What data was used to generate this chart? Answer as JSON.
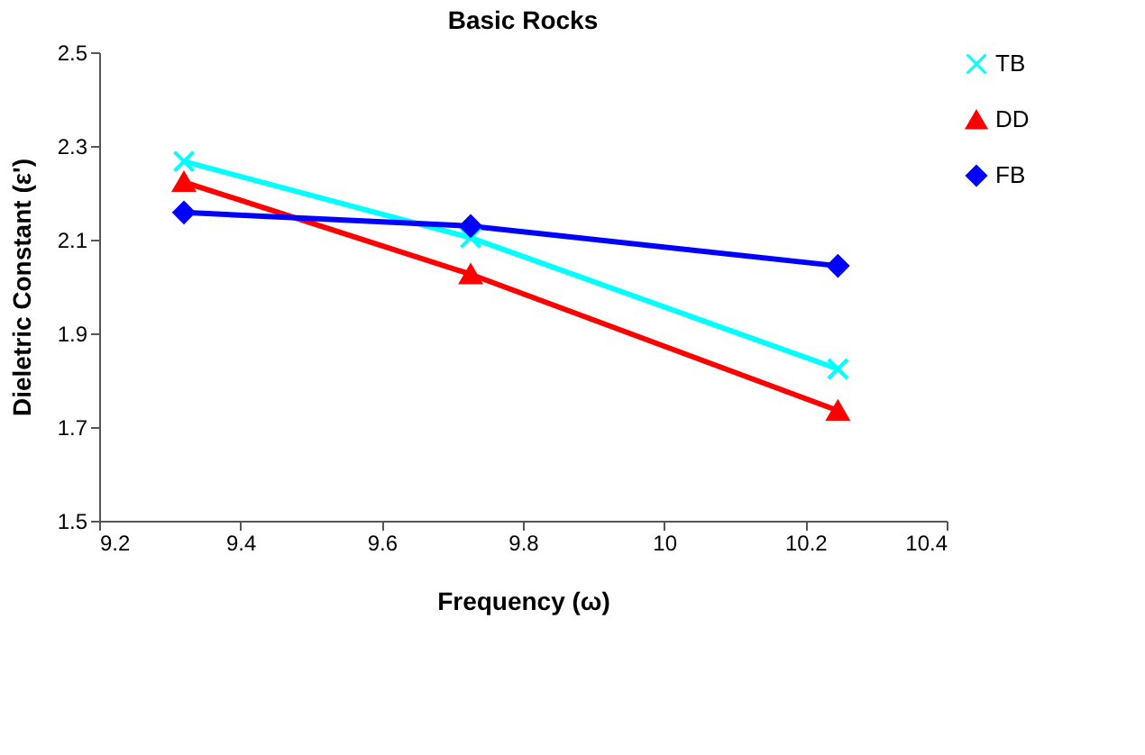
{
  "chart_data": {
    "type": "line",
    "title": "Basic Rocks",
    "xlabel": "Frequency (ω)",
    "ylabel": "Dieletric Constant (ε')",
    "x": [
      9.32,
      9.726,
      10.246
    ],
    "series": [
      {
        "name": "TB",
        "color": "#00ffff",
        "marker": "cross",
        "values": [
          2.267,
          2.104,
          1.824
        ]
      },
      {
        "name": "DD",
        "color": "#ff0000",
        "marker": "triangle",
        "values": [
          2.223,
          2.026,
          1.735
        ]
      },
      {
        "name": "FB",
        "color": "#0000ff",
        "marker": "diamond",
        "values": [
          2.158,
          2.129,
          2.044
        ]
      }
    ],
    "xlim": [
      9.2,
      10.4
    ],
    "xticks": [
      9.2,
      9.4,
      9.6,
      9.8,
      10,
      10.2,
      10.4
    ],
    "ylim": [
      1.5,
      2.5
    ],
    "yticks": [
      1.5,
      1.7,
      1.9,
      2.1,
      2.3,
      2.5
    ],
    "grid": false,
    "legend": "top right",
    "line_style": "solid"
  }
}
